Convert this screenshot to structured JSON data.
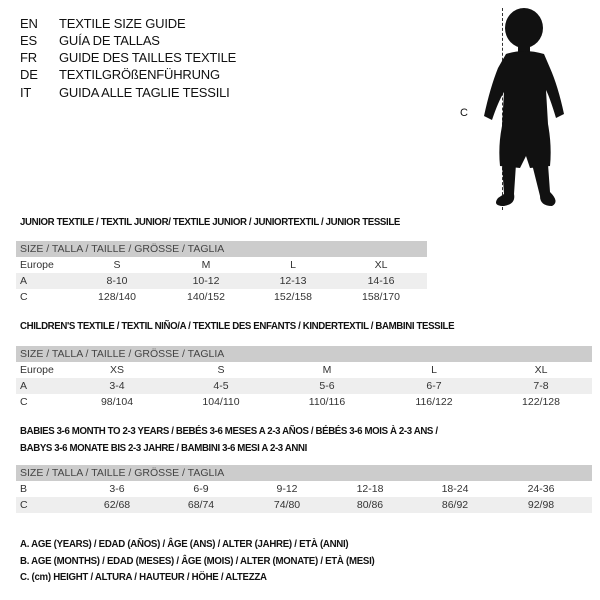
{
  "languages": [
    {
      "code": "EN",
      "text": "TEXTILE SIZE GUIDE"
    },
    {
      "code": "ES",
      "text": "GUÍA DE TALLAS"
    },
    {
      "code": "FR",
      "text": "GUIDE DES TAILLES TEXTILE"
    },
    {
      "code": "DE",
      "text": "TEXTILGRÖßENFÜHRUNG"
    },
    {
      "code": "IT",
      "text": "GUIDA ALLE TAGLIE TESSILI"
    }
  ],
  "figure": {
    "label": "C"
  },
  "size_header": "SIZE / TALLA / TAILLE / GRÖSSE / TAGLIA",
  "junior": {
    "title": "JUNIOR TEXTILE / TEXTIL JUNIOR/ TEXTILE JUNIOR / JUNIORTEXTIL / JUNIOR TESSILE",
    "rows": [
      {
        "label": "Europe",
        "cells": [
          "S",
          "M",
          "L",
          "XL"
        ]
      },
      {
        "label": "A",
        "cells": [
          "8-10",
          "10-12",
          "12-13",
          "14-16"
        ]
      },
      {
        "label": "C",
        "cells": [
          "128/140",
          "140/152",
          "152/158",
          "158/170"
        ]
      }
    ]
  },
  "children": {
    "title": "CHILDREN'S TEXTILE / TEXTIL NIÑO/A / TEXTILE DES ENFANTS / KINDERTEXTIL / BAMBINI TESSILE",
    "rows": [
      {
        "label": "Europe",
        "cells": [
          "XS",
          "S",
          "M",
          "L",
          "XL"
        ]
      },
      {
        "label": "A",
        "cells": [
          "3-4",
          "4-5",
          "5-6",
          "6-7",
          "7-8"
        ]
      },
      {
        "label": "C",
        "cells": [
          "98/104",
          "104/110",
          "110/116",
          "116/122",
          "122/128"
        ]
      }
    ]
  },
  "babies": {
    "title_line1": "BABIES 3-6 MONTH TO 2-3 YEARS / BEBÉS 3-6 MESES A 2-3 AÑOS / BÉBÉS 3-6 MOIS À 2-3 ANS /",
    "title_line2": "BABYS 3-6 MONATE BIS 2-3 JAHRE / BAMBINI 3-6 MESI A 2-3 ANNI",
    "rows": [
      {
        "label": "B",
        "cells": [
          "3-6",
          "6-9",
          "9-12",
          "12-18",
          "18-24",
          "24-36"
        ]
      },
      {
        "label": "C",
        "cells": [
          "62/68",
          "68/74",
          "74/80",
          "80/86",
          "86/92",
          "92/98"
        ]
      }
    ]
  },
  "legend": [
    "A. AGE (YEARS) / EDAD (AÑOS) / ÂGE (ANS) / ALTER (JAHRE) / ETÀ (ANNI)",
    "B. AGE (MONTHS) / EDAD (MESES) / ÂGE (MOIS) / ALTER (MONATE) / ETÀ (MESI)",
    "C. (cm) HEIGHT / ALTURA / HAUTEUR / HÖHE / ALTEZZA"
  ]
}
